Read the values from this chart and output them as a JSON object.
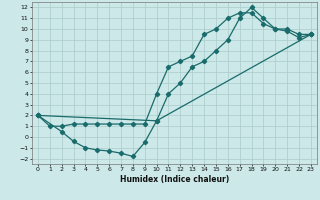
{
  "xlabel": "Humidex (Indice chaleur)",
  "bg_color": "#cce8e8",
  "grid_color": "#aacccc",
  "line_color": "#1a6b6b",
  "xlim": [
    -0.5,
    23.5
  ],
  "ylim": [
    -2.5,
    12.5
  ],
  "xticks": [
    0,
    1,
    2,
    3,
    4,
    5,
    6,
    7,
    8,
    9,
    10,
    11,
    12,
    13,
    14,
    15,
    16,
    17,
    18,
    19,
    20,
    21,
    22,
    23
  ],
  "yticks": [
    -2,
    -1,
    0,
    1,
    2,
    3,
    4,
    5,
    6,
    7,
    8,
    9,
    10,
    11,
    12
  ],
  "curve1_x": [
    0,
    1,
    2,
    3,
    4,
    5,
    6,
    7,
    8,
    9,
    10,
    11,
    12,
    13,
    14,
    15,
    16,
    17,
    18,
    19,
    20,
    21,
    22,
    23
  ],
  "curve1_y": [
    2,
    1,
    1,
    1.2,
    1.2,
    1.2,
    1.2,
    1.2,
    1.2,
    1.2,
    4,
    6.5,
    7,
    7.5,
    9.5,
    10,
    11,
    11.5,
    11.5,
    10.5,
    10,
    10,
    9.5,
    9.5
  ],
  "curve2_x": [
    0,
    2,
    3,
    4,
    5,
    6,
    7,
    8,
    9,
    10,
    23
  ],
  "curve2_y": [
    2,
    0.5,
    -0.4,
    -1,
    -1.2,
    -1.3,
    -1.5,
    -1.8,
    -0.5,
    1.5,
    9.5
  ],
  "curve3_x": [
    0,
    10,
    11,
    12,
    13,
    14,
    15,
    16,
    17,
    18,
    19,
    20,
    21,
    22,
    23
  ],
  "curve3_y": [
    2,
    1.5,
    4,
    5,
    6.5,
    7,
    8,
    9,
    11,
    12,
    11,
    10,
    9.8,
    9.2,
    9.5
  ]
}
